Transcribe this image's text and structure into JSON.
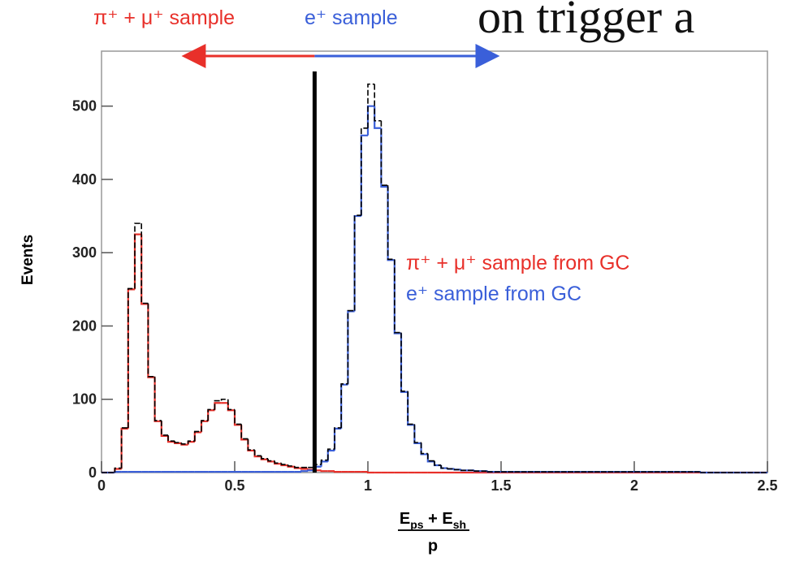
{
  "chart_data": {
    "type": "histogram",
    "background_text": "on trigger a",
    "annotations": [
      {
        "text": "π⁺ + μ⁺ sample",
        "color": "#e8302a"
      },
      {
        "text": "e⁺ sample",
        "color": "#3a5fd9"
      }
    ],
    "cut_x": 0.8,
    "ylabel": "Events",
    "xlabel_numerator": [
      {
        "base": "E",
        "sub": "ps"
      },
      {
        "base": " + E",
        "sub": "sh"
      }
    ],
    "xlabel_denominator": "p",
    "xlim": [
      0,
      2.5
    ],
    "xticks": [
      0,
      0.5,
      1,
      1.5,
      2,
      2.5
    ],
    "ylim": [
      0,
      575
    ],
    "yticks": [
      0,
      100,
      200,
      300,
      400,
      500
    ],
    "bins": [
      0,
      0.025,
      0.05,
      0.075,
      0.1,
      0.125,
      0.15,
      0.175,
      0.2,
      0.225,
      0.25,
      0.275,
      0.3,
      0.325,
      0.35,
      0.375,
      0.4,
      0.425,
      0.45,
      0.475,
      0.5,
      0.525,
      0.55,
      0.575,
      0.6,
      0.625,
      0.65,
      0.675,
      0.7,
      0.725,
      0.75,
      0.775,
      0.8,
      0.825,
      0.85,
      0.875,
      0.9,
      0.925,
      0.95,
      0.975,
      1,
      1.025,
      1.05,
      1.075,
      1.1,
      1.125,
      1.15,
      1.175,
      1.2,
      1.225,
      1.25,
      1.275,
      1.3,
      1.325,
      1.35,
      1.375,
      1.4,
      1.425,
      1.45,
      1.475,
      1.5,
      1.525,
      1.55,
      1.575,
      1.6,
      1.625,
      1.65,
      1.675,
      1.7,
      1.725,
      1.75,
      1.775,
      1.8,
      1.825,
      1.85,
      1.875,
      1.9,
      1.925,
      1.95,
      1.975,
      2,
      2.025,
      2.05,
      2.075,
      2.1,
      2.125,
      2.15,
      2.175,
      2.2,
      2.225,
      2.25,
      2.275,
      2.3,
      2.325,
      2.35,
      2.375,
      2.4,
      2.425,
      2.45,
      2.475,
      2.5
    ],
    "series": [
      {
        "name": "π⁺ + μ⁺ sample from GC",
        "color": "#e8302a",
        "values": [
          0,
          0,
          5,
          60,
          250,
          325,
          230,
          130,
          70,
          50,
          42,
          40,
          38,
          42,
          55,
          70,
          85,
          95,
          95,
          85,
          65,
          45,
          30,
          22,
          18,
          15,
          12,
          10,
          8,
          6,
          5,
          4,
          3,
          2,
          2,
          1,
          1,
          1,
          1,
          1,
          0,
          0,
          0,
          0,
          0,
          0,
          0,
          0,
          0,
          0,
          0,
          0,
          0,
          0,
          0,
          0,
          0,
          0,
          0,
          0,
          0,
          0,
          0,
          0,
          0,
          0,
          0,
          0,
          0,
          0,
          0,
          0,
          0,
          0,
          0,
          0,
          0,
          0,
          0,
          0,
          0,
          0,
          0,
          0,
          0,
          0,
          0,
          0,
          0,
          0,
          0,
          0,
          0,
          0,
          0,
          0,
          0,
          0,
          0,
          0
        ]
      },
      {
        "name": "e⁺ sample from GC",
        "color": "#3a5fd9",
        "values": [
          0,
          0,
          1,
          1,
          1,
          1,
          1,
          1,
          1,
          1,
          1,
          1,
          1,
          1,
          1,
          1,
          1,
          1,
          1,
          1,
          1,
          1,
          1,
          1,
          1,
          1,
          1,
          1,
          1,
          1,
          2,
          3,
          8,
          15,
          30,
          60,
          120,
          220,
          350,
          460,
          500,
          470,
          390,
          290,
          190,
          110,
          65,
          40,
          25,
          15,
          10,
          6,
          5,
          4,
          3,
          3,
          2,
          2,
          1,
          1,
          1,
          1,
          1,
          1,
          1,
          1,
          1,
          1,
          1,
          1,
          1,
          1,
          1,
          1,
          1,
          1,
          1,
          1,
          1,
          1,
          1,
          1,
          1,
          1,
          1,
          1,
          1,
          1,
          1,
          1,
          0,
          0,
          0,
          0,
          0,
          0,
          0,
          0,
          0,
          0
        ]
      },
      {
        "color": "#000000",
        "dashed": true,
        "values": [
          0,
          0,
          6,
          61,
          251,
          340,
          231,
          131,
          71,
          51,
          43,
          41,
          39,
          43,
          56,
          71,
          86,
          98,
          100,
          86,
          66,
          46,
          31,
          23,
          19,
          16,
          13,
          11,
          9,
          7,
          7,
          7,
          11,
          17,
          32,
          61,
          121,
          221,
          351,
          470,
          530,
          480,
          392,
          291,
          191,
          111,
          66,
          41,
          26,
          16,
          10,
          6,
          5,
          4,
          3,
          3,
          2,
          2,
          1,
          1,
          1,
          1,
          1,
          1,
          1,
          1,
          1,
          1,
          1,
          1,
          1,
          1,
          1,
          1,
          1,
          1,
          1,
          1,
          1,
          1,
          1,
          1,
          1,
          1,
          1,
          1,
          1,
          1,
          1,
          1,
          0,
          0,
          0,
          0,
          0,
          0,
          0,
          0,
          0,
          0
        ]
      }
    ]
  }
}
